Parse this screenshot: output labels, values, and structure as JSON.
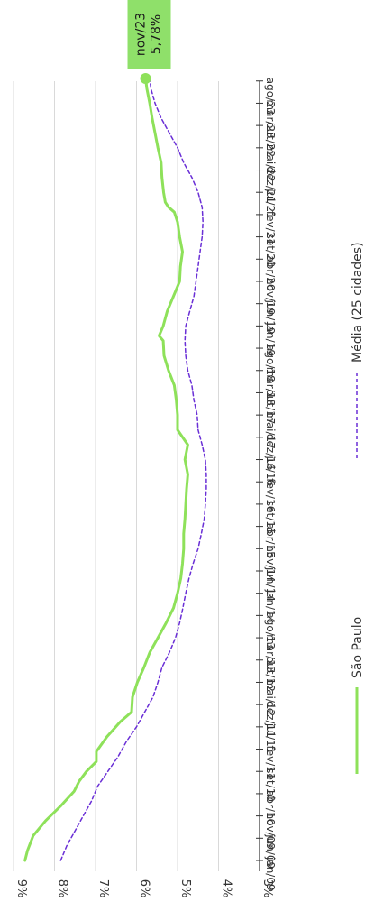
{
  "chart_data": {
    "type": "line",
    "orientation": "rotated-90-clockwise",
    "ylim": [
      3,
      9
    ],
    "y_ticks": [
      "3%",
      "4%",
      "5%",
      "6%",
      "7%",
      "8%",
      "9%"
    ],
    "y_tick_values": [
      3,
      4,
      5,
      6,
      7,
      8,
      9
    ],
    "x_tick_labels": [
      "jan/09",
      "jun/09",
      "nov/09",
      "abr/10",
      "set/10",
      "fev/11",
      "jul/11",
      "dez/11",
      "mai/12",
      "out/12",
      "mar/13",
      "ago/13",
      "jan/14",
      "jun/14",
      "nov/14",
      "abr/15",
      "set/15",
      "fev/16",
      "jul/16",
      "dez/16",
      "mai/17",
      "out/17",
      "mar/18",
      "ago/18",
      "jan/19",
      "jun/19",
      "nov/19",
      "abr/20",
      "set/20",
      "fev/21",
      "jul/21",
      "dez/21",
      "mai/22",
      "out/22",
      "mar/23",
      "ago/23"
    ],
    "grid": true,
    "legend_position": "bottom",
    "annotation": {
      "label": "nov/23",
      "value": "5,78%",
      "color": "#8fe06a"
    },
    "series": [
      {
        "name": "São Paulo",
        "color": "#8ee15a",
        "style": "solid",
        "months": [
          0,
          2,
          5,
          8,
          11,
          14,
          16,
          18,
          20,
          22,
          25,
          28,
          30,
          33,
          36,
          39,
          42,
          45,
          48,
          51,
          54,
          57,
          60,
          63,
          66,
          69,
          72,
          75,
          78,
          81,
          84,
          87,
          90,
          93,
          96,
          99,
          102,
          105,
          106,
          108,
          111,
          114,
          117,
          120,
          123,
          126,
          129,
          131,
          132,
          133,
          135,
          138,
          141,
          144,
          147,
          150,
          153,
          156,
          158
        ],
        "values": [
          8.72,
          8.66,
          8.52,
          8.22,
          7.85,
          7.52,
          7.4,
          7.22,
          6.98,
          6.98,
          6.72,
          6.4,
          6.12,
          6.1,
          5.98,
          5.82,
          5.68,
          5.48,
          5.28,
          5.1,
          5.0,
          4.92,
          4.88,
          4.85,
          4.85,
          4.82,
          4.8,
          4.78,
          4.75,
          4.82,
          4.75,
          5.0,
          5.0,
          5.03,
          5.08,
          5.22,
          5.33,
          5.35,
          5.45,
          5.35,
          5.25,
          5.1,
          4.95,
          4.93,
          4.88,
          4.95,
          5.0,
          5.08,
          5.22,
          5.3,
          5.34,
          5.38,
          5.4,
          5.48,
          5.55,
          5.62,
          5.68,
          5.75,
          5.78
        ]
      },
      {
        "name": "Média (25 cidades)",
        "color": "#6a2fd6",
        "style": "dashed",
        "months": [
          0,
          3,
          6,
          9,
          12,
          15,
          18,
          21,
          24,
          27,
          30,
          33,
          36,
          39,
          42,
          45,
          48,
          51,
          54,
          57,
          60,
          63,
          66,
          69,
          72,
          75,
          78,
          81,
          84,
          87,
          90,
          93,
          96,
          99,
          102,
          105,
          108,
          111,
          114,
          117,
          120,
          123,
          126,
          129,
          132,
          135,
          138,
          141,
          144,
          147,
          150,
          153,
          156,
          158
        ],
        "values": [
          7.85,
          7.7,
          7.5,
          7.3,
          7.1,
          6.95,
          6.7,
          6.45,
          6.25,
          6.0,
          5.8,
          5.6,
          5.48,
          5.38,
          5.2,
          5.05,
          4.95,
          4.87,
          4.8,
          4.72,
          4.62,
          4.5,
          4.42,
          4.35,
          4.32,
          4.3,
          4.3,
          4.32,
          4.4,
          4.5,
          4.52,
          4.6,
          4.65,
          4.75,
          4.8,
          4.82,
          4.8,
          4.7,
          4.6,
          4.55,
          4.5,
          4.45,
          4.4,
          4.38,
          4.4,
          4.5,
          4.65,
          4.85,
          5.0,
          5.2,
          5.4,
          5.55,
          5.65,
          5.68
        ]
      }
    ]
  }
}
